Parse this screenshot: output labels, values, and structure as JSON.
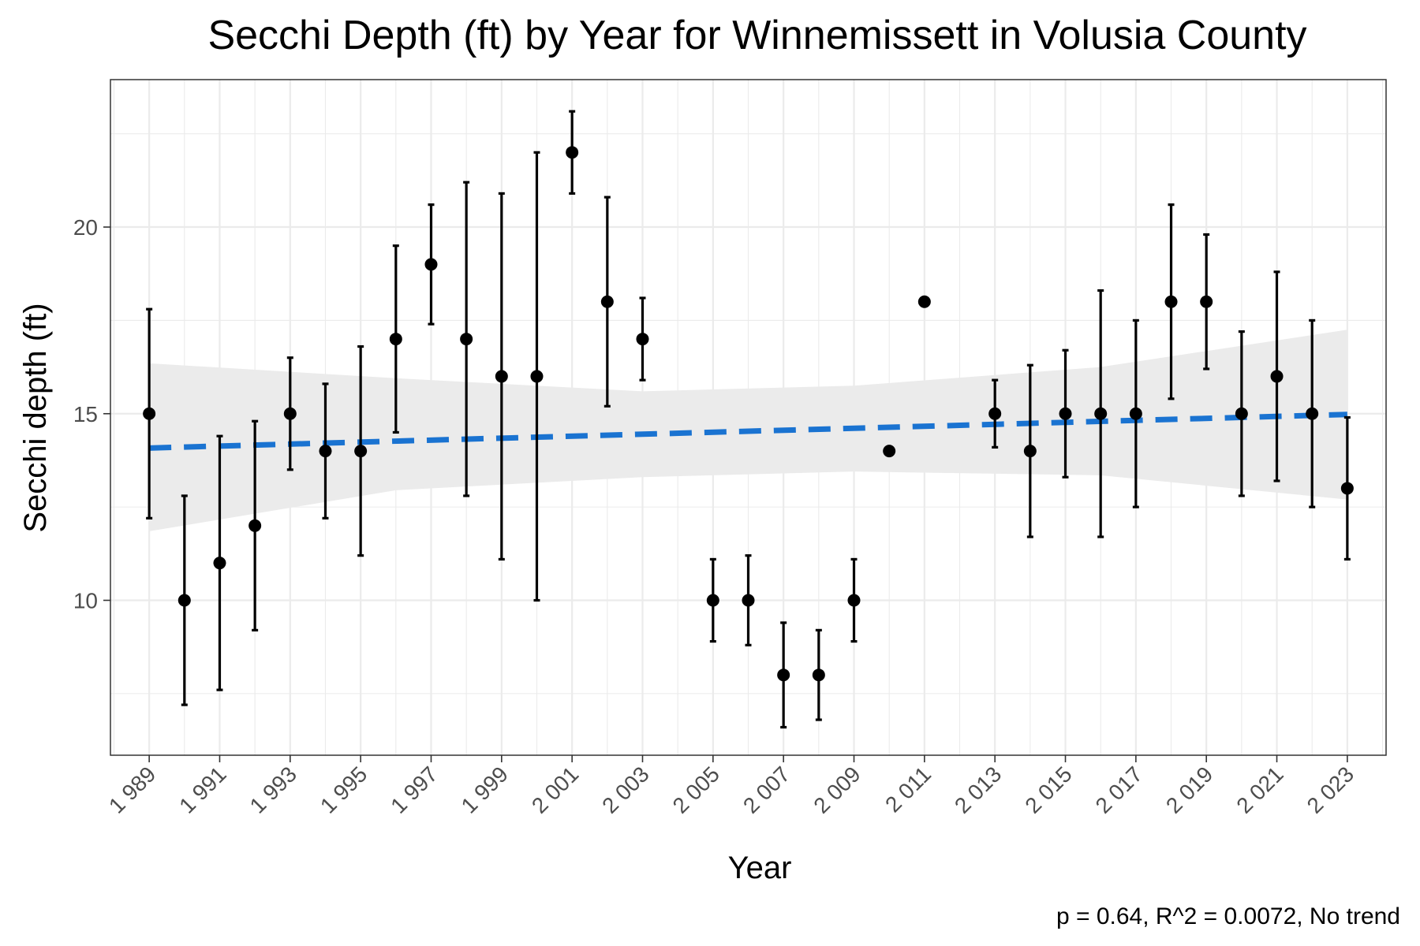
{
  "chart_data": {
    "type": "scatter",
    "title": "Secchi Depth (ft) by Year for Winnemissett in Volusia County",
    "xlabel": "Year",
    "ylabel": "Secchi depth (ft)",
    "caption": "p = 0.64, R^2 = 0.0072, No trend",
    "xlim": [
      1987.9,
      2024.1
    ],
    "ylim": [
      5.85,
      23.95
    ],
    "x_ticks": [
      1989,
      1991,
      1993,
      1995,
      1997,
      1999,
      2001,
      2003,
      2005,
      2007,
      2009,
      2011,
      2013,
      2015,
      2017,
      2019,
      2021,
      2023
    ],
    "x_tick_labels": [
      "1 989",
      "1 991",
      "1 993",
      "1 995",
      "1 997",
      "1 999",
      "2 001",
      "2 003",
      "2 005",
      "2 007",
      "2 009",
      "2 011",
      "2 013",
      "2 015",
      "2 017",
      "2 019",
      "2 021",
      "2 023"
    ],
    "y_ticks": [
      10,
      15,
      20
    ],
    "y_tick_labels": [
      "10",
      "15",
      "20"
    ],
    "grid": true,
    "series": [
      {
        "points": [
          {
            "year": 1989,
            "value": 15,
            "low": 12.2,
            "high": 17.8
          },
          {
            "year": 1990,
            "value": 10,
            "low": 7.2,
            "high": 12.8
          },
          {
            "year": 1991,
            "value": 11,
            "low": 7.6,
            "high": 14.4
          },
          {
            "year": 1992,
            "value": 12,
            "low": 9.2,
            "high": 14.8
          },
          {
            "year": 1993,
            "value": 15,
            "low": 13.5,
            "high": 16.5
          },
          {
            "year": 1994,
            "value": 14,
            "low": 12.2,
            "high": 15.8
          },
          {
            "year": 1995,
            "value": 14,
            "low": 11.2,
            "high": 16.8
          },
          {
            "year": 1996,
            "value": 17,
            "low": 14.5,
            "high": 19.5
          },
          {
            "year": 1997,
            "value": 19,
            "low": 17.4,
            "high": 20.6
          },
          {
            "year": 1998,
            "value": 17,
            "low": 12.8,
            "high": 21.2
          },
          {
            "year": 1999,
            "value": 16,
            "low": 11.1,
            "high": 20.9
          },
          {
            "year": 2000,
            "value": 16,
            "low": 10.0,
            "high": 22.0
          },
          {
            "year": 2001,
            "value": 22,
            "low": 20.9,
            "high": 23.1
          },
          {
            "year": 2002,
            "value": 18,
            "low": 15.2,
            "high": 20.8
          },
          {
            "year": 2003,
            "value": 17,
            "low": 15.9,
            "high": 18.1
          },
          {
            "year": 2005,
            "value": 10,
            "low": 8.9,
            "high": 11.1
          },
          {
            "year": 2006,
            "value": 10,
            "low": 8.8,
            "high": 11.2
          },
          {
            "year": 2007,
            "value": 8,
            "low": 6.6,
            "high": 9.4
          },
          {
            "year": 2008,
            "value": 8,
            "low": 6.8,
            "high": 9.2
          },
          {
            "year": 2009,
            "value": 10,
            "low": 8.9,
            "high": 11.1
          },
          {
            "year": 2010,
            "value": 14,
            "low": 14,
            "high": 14
          },
          {
            "year": 2011,
            "value": 18,
            "low": 18,
            "high": 18
          },
          {
            "year": 2013,
            "value": 15,
            "low": 14.1,
            "high": 15.9
          },
          {
            "year": 2014,
            "value": 14,
            "low": 11.7,
            "high": 16.3
          },
          {
            "year": 2015,
            "value": 15,
            "low": 13.3,
            "high": 16.7
          },
          {
            "year": 2016,
            "value": 15,
            "low": 11.7,
            "high": 18.3
          },
          {
            "year": 2017,
            "value": 15,
            "low": 12.5,
            "high": 17.5
          },
          {
            "year": 2018,
            "value": 18,
            "low": 15.4,
            "high": 20.6
          },
          {
            "year": 2019,
            "value": 18,
            "low": 16.2,
            "high": 19.8
          },
          {
            "year": 2020,
            "value": 15,
            "low": 12.8,
            "high": 17.2
          },
          {
            "year": 2021,
            "value": 16,
            "low": 13.2,
            "high": 18.8
          },
          {
            "year": 2022,
            "value": 15,
            "low": 12.5,
            "high": 17.5
          },
          {
            "year": 2023,
            "value": 13,
            "low": 11.1,
            "high": 14.9
          }
        ],
        "color": "#000000"
      }
    ],
    "trend": {
      "style": "dashed",
      "color": "#1a73d1",
      "x": [
        1989,
        2023
      ],
      "y": [
        14.08,
        14.98
      ],
      "band_color": "#ebebeb",
      "band": [
        {
          "year": 1989,
          "low": 11.85,
          "high": 16.35
        },
        {
          "year": 1996,
          "low": 12.95,
          "high": 15.95
        },
        {
          "year": 2003,
          "low": 13.3,
          "high": 15.6
        },
        {
          "year": 2009,
          "low": 13.45,
          "high": 15.75
        },
        {
          "year": 2016,
          "low": 13.35,
          "high": 16.25
        },
        {
          "year": 2023,
          "low": 12.7,
          "high": 17.25
        }
      ]
    }
  }
}
